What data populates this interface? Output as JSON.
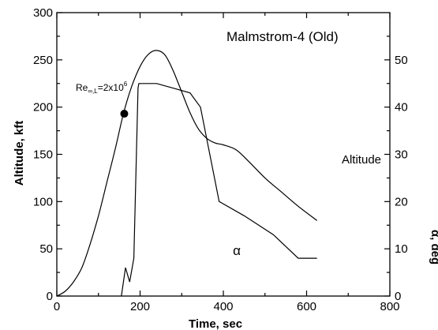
{
  "chart_data": {
    "type": "line",
    "title": "Malmstrom-4 (Old)",
    "xlabel": "Time, sec",
    "ylabel": "Altitude, kft",
    "y2label": "α, deg",
    "xlim": [
      0,
      800
    ],
    "ylim": [
      0,
      300
    ],
    "y2lim": [
      0,
      60
    ],
    "xticks": [
      "0",
      "200",
      "400",
      "600",
      "800"
    ],
    "yticks": [
      "0",
      "50",
      "100",
      "150",
      "200",
      "250",
      "300"
    ],
    "y2ticks": [
      "0",
      "10",
      "20",
      "30",
      "40",
      "50"
    ],
    "grid": false,
    "series": [
      {
        "name": "Altitude",
        "axis": "left",
        "x": [
          0,
          20,
          40,
          60,
          80,
          100,
          120,
          140,
          160,
          180,
          200,
          220,
          240,
          260,
          280,
          300,
          320,
          340,
          360,
          380,
          400,
          430,
          460,
          500,
          540,
          580,
          625
        ],
        "y": [
          0,
          5,
          15,
          30,
          55,
          85,
          120,
          155,
          193,
          222,
          243,
          256,
          260,
          255,
          238,
          216,
          194,
          177,
          167,
          162,
          160,
          155,
          143,
          125,
          110,
          95,
          80
        ]
      },
      {
        "name": "α",
        "axis": "right",
        "x": [
          155,
          165,
          175,
          185,
          195,
          197,
          240,
          280,
          320,
          345,
          390,
          450,
          520,
          580,
          625
        ],
        "y": [
          0,
          6,
          3,
          8,
          44,
          45,
          45,
          44,
          43,
          40,
          20,
          17,
          13,
          8,
          8
        ]
      }
    ],
    "annotations": {
      "marker": {
        "x": 162,
        "y": 193
      },
      "re_label_base": "Re",
      "re_label_sub": "∞,L",
      "re_label_eq": "=2x10",
      "re_label_exp": "6"
    }
  }
}
